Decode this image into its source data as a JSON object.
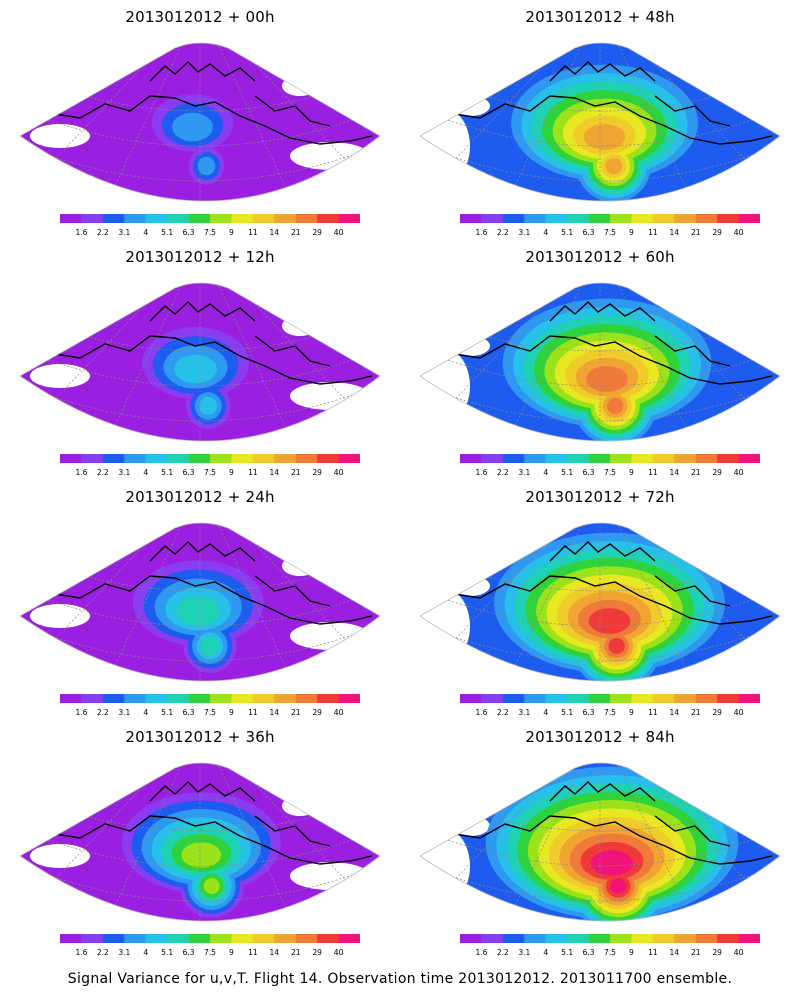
{
  "panels": [
    {
      "title": "2013012012 + 00h",
      "intensity": 0.1
    },
    {
      "title": "2013012012 + 48h",
      "intensity": 0.58
    },
    {
      "title": "2013012012 + 12h",
      "intensity": 0.22
    },
    {
      "title": "2013012012 + 60h",
      "intensity": 0.68
    },
    {
      "title": "2013012012 + 24h",
      "intensity": 0.33
    },
    {
      "title": "2013012012 + 72h",
      "intensity": 0.78
    },
    {
      "title": "2013012012 + 36h",
      "intensity": 0.45
    },
    {
      "title": "2013012012 + 84h",
      "intensity": 0.88
    }
  ],
  "colorbar": {
    "colors": [
      "#9b1fe0",
      "#8a3cf0",
      "#1e5cf0",
      "#2f98f0",
      "#27c0e8",
      "#1fd2b4",
      "#2ed23a",
      "#9ce21a",
      "#e8e822",
      "#f0cc2a",
      "#f0a432",
      "#f07a3a",
      "#f03a3a",
      "#f0147a"
    ],
    "labels": [
      "1.6",
      "2.2",
      "3.1",
      "4",
      "5.1",
      "6.3",
      "7.5",
      "9",
      "11",
      "14",
      "21",
      "29",
      "40"
    ]
  },
  "footer": "Signal Variance for u,v,T. Flight 14. Observation time 2013012012. 2013011700 ensemble."
}
